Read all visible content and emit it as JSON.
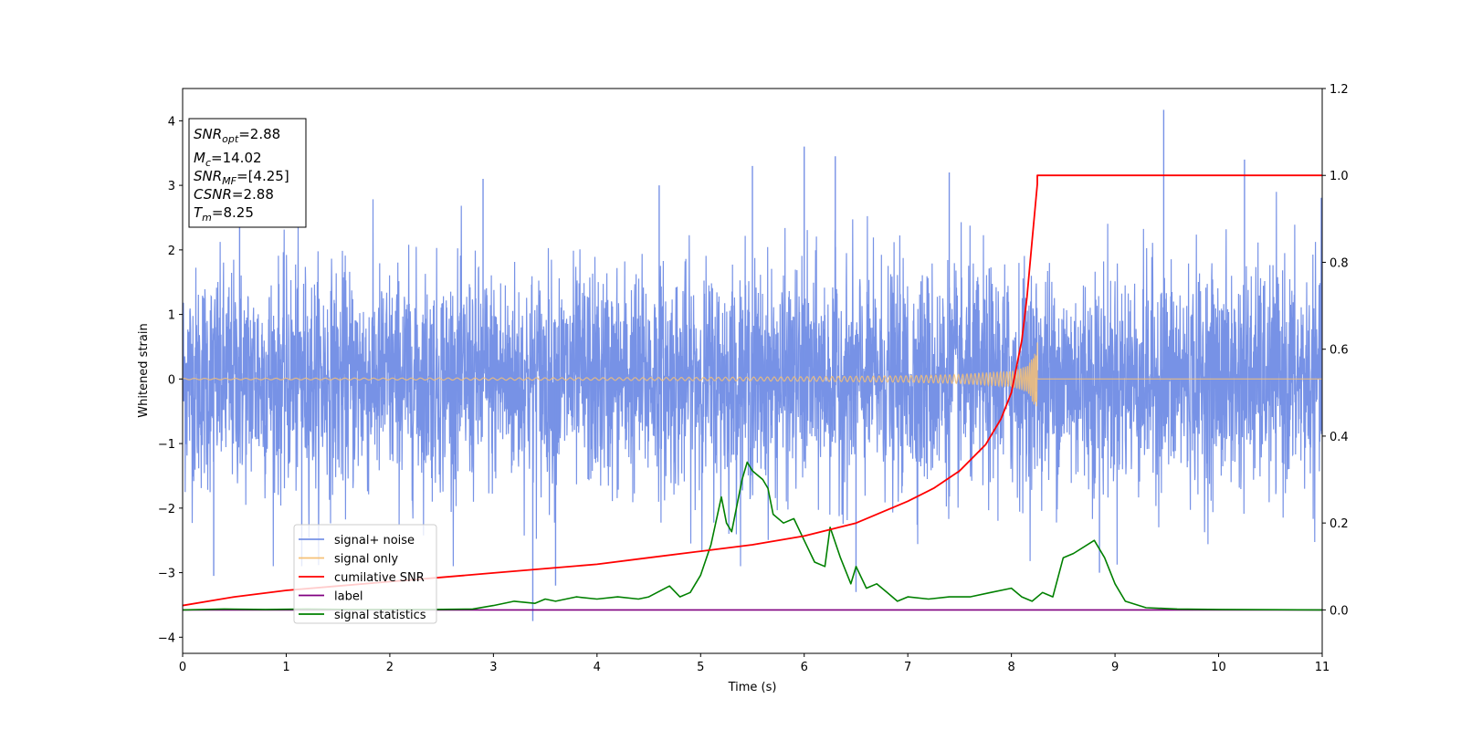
{
  "chart_data": {
    "type": "line",
    "xlabel": "Time (s)",
    "ylabel": "Whitened strain",
    "xlim": [
      0,
      11
    ],
    "ylim": [
      -4.25,
      4.5
    ],
    "y2lim": [
      -0.1,
      1.2
    ],
    "x_ticks": [
      0,
      1,
      2,
      3,
      4,
      5,
      6,
      7,
      8,
      9,
      10,
      11
    ],
    "x_tick_labels": [
      "0",
      "1",
      "2",
      "3",
      "4",
      "5",
      "6",
      "7",
      "8",
      "9",
      "10",
      "11"
    ],
    "y_ticks": [
      -4,
      -3,
      -2,
      -1,
      0,
      1,
      2,
      3,
      4
    ],
    "y_tick_labels": [
      "−4",
      "−3",
      "−2",
      "−1",
      "0",
      "1",
      "2",
      "3",
      "4"
    ],
    "y2_ticks": [
      0.0,
      0.2,
      0.4,
      0.6,
      0.8,
      1.0,
      1.2
    ],
    "y2_tick_labels": [
      "0.0",
      "0.2",
      "0.4",
      "0.6",
      "0.8",
      "1.0",
      "1.2"
    ],
    "grid": false,
    "legend_position": "bottom-left",
    "info_box": {
      "snr_opt": "=2.88",
      "mc": "=14.02",
      "snr_mf": "=[4.25]",
      "csnr": "=2.88",
      "tm": "=8.25"
    },
    "series": [
      {
        "name": "signal+ noise",
        "axis": "left",
        "color": "#7792e6",
        "description": "dense whitened noise, typical amplitude about ±1.5 with spikes up to 4.17 (t≈9.47) and down to −3.75 (t≈3.38)",
        "notable_spikes": [
          [
            0.3,
            -3.05
          ],
          [
            0.55,
            2.5
          ],
          [
            1.15,
            -2.9
          ],
          [
            2.9,
            3.1
          ],
          [
            3.38,
            -3.75
          ],
          [
            3.6,
            -3.2
          ],
          [
            4.6,
            3.0
          ],
          [
            5.5,
            3.3
          ],
          [
            6.0,
            3.6
          ],
          [
            6.3,
            3.45
          ],
          [
            6.5,
            -3.3
          ],
          [
            7.4,
            3.2
          ],
          [
            8.85,
            -3.0
          ],
          [
            9.47,
            4.17
          ],
          [
            10.25,
            3.4
          ]
        ]
      },
      {
        "name": "signal only",
        "axis": "left",
        "color": "#f5c076",
        "description": "chirp that grows slowly and ends abruptly near the merger time",
        "envelope": [
          [
            0,
            0.01
          ],
          [
            2,
            0.015
          ],
          [
            4,
            0.02
          ],
          [
            5,
            0.025
          ],
          [
            6,
            0.035
          ],
          [
            7,
            0.05
          ],
          [
            7.5,
            0.07
          ],
          [
            8,
            0.12
          ],
          [
            8.15,
            0.2
          ],
          [
            8.22,
            0.4
          ],
          [
            8.25,
            0.58
          ]
        ],
        "end_time": 8.25
      },
      {
        "name": "cumilative SNR",
        "axis": "right",
        "color": "#ff0000",
        "x": [
          0,
          0.5,
          1,
          1.5,
          2,
          2.5,
          3,
          3.5,
          4,
          4.5,
          5,
          5.5,
          6,
          6.5,
          7,
          7.25,
          7.5,
          7.75,
          7.9,
          8.0,
          8.1,
          8.15,
          8.2,
          8.25,
          8.25,
          11
        ],
        "y": [
          0.01,
          0.03,
          0.045,
          0.055,
          0.065,
          0.075,
          0.085,
          0.095,
          0.105,
          0.12,
          0.135,
          0.15,
          0.17,
          0.2,
          0.25,
          0.28,
          0.32,
          0.38,
          0.44,
          0.5,
          0.62,
          0.72,
          0.85,
          0.98,
          1.0,
          1.0
        ]
      },
      {
        "name": "label",
        "axis": "right",
        "color": "#800080",
        "x": [
          0,
          11
        ],
        "y": [
          0.0,
          0.0
        ]
      },
      {
        "name": "signal statistics",
        "axis": "right",
        "color": "#008000",
        "x": [
          0,
          0.4,
          0.8,
          1.2,
          1.6,
          2.0,
          2.4,
          2.8,
          3.0,
          3.2,
          3.4,
          3.5,
          3.6,
          3.8,
          4.0,
          4.2,
          4.4,
          4.5,
          4.7,
          4.8,
          4.9,
          5.0,
          5.1,
          5.2,
          5.25,
          5.3,
          5.4,
          5.45,
          5.5,
          5.6,
          5.65,
          5.7,
          5.8,
          5.9,
          6.0,
          6.1,
          6.2,
          6.25,
          6.35,
          6.45,
          6.5,
          6.6,
          6.7,
          6.8,
          6.9,
          7.0,
          7.2,
          7.4,
          7.6,
          7.8,
          8.0,
          8.1,
          8.2,
          8.3,
          8.4,
          8.5,
          8.6,
          8.8,
          8.9,
          9.0,
          9.1,
          9.3,
          9.6,
          10.0,
          11
        ],
        "y": [
          0.0,
          0.002,
          0.001,
          0.002,
          0.001,
          0.001,
          0.001,
          0.002,
          0.01,
          0.02,
          0.015,
          0.025,
          0.02,
          0.03,
          0.025,
          0.03,
          0.025,
          0.03,
          0.055,
          0.03,
          0.04,
          0.08,
          0.15,
          0.26,
          0.2,
          0.18,
          0.3,
          0.34,
          0.32,
          0.3,
          0.28,
          0.22,
          0.2,
          0.21,
          0.16,
          0.11,
          0.1,
          0.19,
          0.12,
          0.06,
          0.1,
          0.05,
          0.06,
          0.04,
          0.02,
          0.03,
          0.025,
          0.03,
          0.03,
          0.04,
          0.05,
          0.03,
          0.02,
          0.04,
          0.03,
          0.12,
          0.13,
          0.16,
          0.12,
          0.06,
          0.02,
          0.005,
          0.002,
          0.001,
          0.0
        ]
      }
    ]
  }
}
